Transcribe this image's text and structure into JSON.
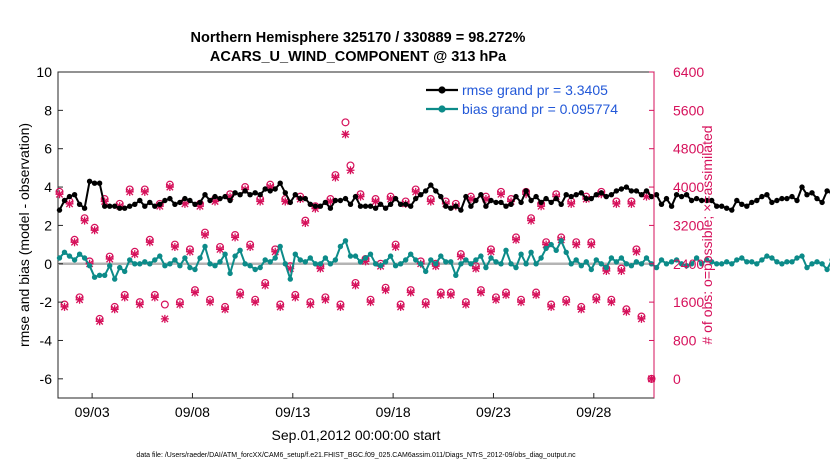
{
  "chart_data": {
    "type": "line",
    "title_line1": "Northern Hemisphere 325170 / 330889 = 98.272%",
    "title_line2": "ACARS_U_WIND_COMPONENT @ 313 hPa",
    "xlabel": "Sep.01,2012 00:00:00 start",
    "ylabel_left": "rmse and bias (model - observation)",
    "ylabel_right": "# of obs: o=possible; ×=assimilated",
    "footer": "data file: /Users/raeder/DAI/ATM_forcXX/CAM6_setup/f.e21.FHIST_BGC.f09_025.CAM6assim.011/Diags_NTrS_2012-09/obs_diag_output.nc",
    "x_tick_labels": [
      "09/03",
      "09/08",
      "09/13",
      "09/18",
      "09/23",
      "09/28"
    ],
    "x_tick_days": [
      3,
      8,
      13,
      18,
      23,
      28
    ],
    "xlim": [
      1.3,
      31.0
    ],
    "ylim_left": [
      -7,
      10
    ],
    "yticks_left": [
      -6,
      -4,
      -2,
      0,
      2,
      4,
      6,
      8,
      10
    ],
    "ylim_right": [
      -400,
      6400
    ],
    "yticks_right": [
      0,
      800,
      1600,
      2400,
      3200,
      4000,
      4800,
      5600,
      6400
    ],
    "legend": [
      {
        "name": "rmse grand pr = 3.3405",
        "color": "#000000"
      },
      {
        "name": "bias grand pr = 0.095774",
        "color": "#0c8b89"
      }
    ],
    "colors": {
      "rmse": "#000000",
      "bias": "#0c8b89",
      "obs": "#d6115b",
      "zero_line": "#b4b4b4",
      "legend_text": "#2258d8"
    },
    "time_step_days": 0.25,
    "start_day": 1.375,
    "rmse": [
      2.8,
      3.3,
      3.5,
      3.6,
      3.1,
      2.9,
      4.3,
      4.2,
      4.2,
      3.0,
      3.0,
      3.0,
      2.9,
      2.9,
      3.0,
      3.1,
      3.3,
      3.0,
      3.2,
      3.0,
      3.1,
      3.3,
      3.4,
      3.1,
      3.2,
      3.4,
      3.3,
      3.1,
      3.2,
      3.6,
      3.3,
      3.5,
      3.4,
      3.5,
      3.3,
      3.7,
      3.6,
      3.8,
      3.6,
      3.7,
      3.6,
      3.9,
      3.8,
      3.9,
      4.2,
      3.7,
      3.2,
      3.6,
      3.4,
      3.4,
      3.1,
      3.0,
      3.0,
      3.2,
      2.9,
      3.3,
      3.3,
      3.4,
      3.1,
      3.5,
      3.0,
      3.0,
      3.0,
      2.9,
      3.1,
      2.9,
      3.1,
      3.4,
      3.1,
      3.1,
      3.0,
      3.4,
      3.6,
      3.8,
      4.1,
      3.8,
      3.5,
      3.0,
      2.9,
      3.0,
      2.8,
      3.5,
      3.0,
      3.3,
      3.6,
      3.0,
      3.3,
      3.2,
      3.2,
      3.0,
      3.1,
      3.5,
      3.2,
      3.8,
      3.3,
      3.5,
      3.2,
      3.4,
      3.2,
      3.4,
      3.1,
      3.6,
      3.5,
      3.6,
      3.7,
      3.4,
      3.4,
      3.6,
      3.7,
      3.5,
      3.6,
      3.8,
      3.9,
      4.0,
      3.8,
      3.8,
      3.6,
      3.8,
      3.5,
      3.6,
      3.1,
      3.4,
      3.0,
      3.6,
      3.5,
      3.6,
      3.3,
      3.4,
      3.3,
      3.3,
      3.3,
      3.0,
      3.0,
      2.9,
      2.8,
      3.3,
      3.1,
      3.0,
      3.2,
      3.3,
      3.5,
      3.6,
      3.2,
      3.3,
      3.4,
      3.4,
      3.5,
      3.3,
      4.0,
      3.6,
      3.7,
      3.4,
      3.2,
      3.8,
      3.7,
      3.4,
      3.6,
      3.2,
      3.2,
      3.6,
      3.3,
      3.5,
      3.0,
      3.0,
      3.4,
      3.6,
      3.5,
      3.7,
      3.4,
      3.6,
      3.3,
      3.8,
      3.5,
      4.4,
      3.9,
      3.6,
      3.3,
      3.5,
      3.0,
      3.4,
      4.4,
      3.9,
      3.5,
      3.4,
      3.2,
      3.3,
      3.3,
      3.5,
      3.6,
      3.6,
      3.8,
      3.4,
      3.1,
      3.2,
      3.4,
      3.6,
      3.9,
      4.0,
      4.2,
      3.8,
      4.1
    ],
    "bias": [
      0.3,
      0.6,
      0.4,
      0.2,
      0.5,
      0.3,
      -0.1,
      -0.7,
      -0.6,
      -0.6,
      -0.1,
      -0.8,
      -0.2,
      -0.4,
      0.2,
      0.0,
      0.0,
      0.1,
      0.0,
      0.2,
      0.4,
      -0.1,
      0.0,
      0.2,
      -0.1,
      0.3,
      -0.2,
      -0.3,
      0.3,
      0.9,
      0.0,
      -0.1,
      0.1,
      0.5,
      -0.5,
      0.4,
      0.7,
      0.0,
      -0.1,
      -0.3,
      -0.2,
      0.2,
      0.1,
      0.3,
      0.9,
      0.0,
      -0.8,
      0.5,
      0.2,
      0.1,
      0.3,
      0.0,
      0.0,
      0.3,
      0.0,
      0.2,
      0.9,
      1.2,
      0.4,
      0.4,
      0.1,
      0.3,
      0.5,
      0.0,
      -0.1,
      0.1,
      0.4,
      -0.1,
      0.0,
      0.2,
      0.5,
      0.2,
      0.0,
      -0.4,
      0.2,
      0.0,
      0.4,
      0.1,
      0.1,
      -0.6,
      0.0,
      0.2,
      0.0,
      0.2,
      0.4,
      -0.2,
      0.3,
      0.1,
      0.0,
      0.7,
      0.0,
      -0.2,
      0.5,
      0.0,
      0.6,
      0.0,
      0.3,
      0.8,
      1.0,
      0.7,
      1.2,
      0.6,
      0.0,
      0.2,
      -0.1,
      0.1,
      -0.3,
      0.2,
      0.0,
      -0.2,
      0.3,
      0.1,
      0.3,
      0.0,
      -0.1,
      0.1,
      0.0,
      0.3,
      0.0,
      -0.2,
      0.2,
      0.0,
      0.1,
      0.2,
      0.0,
      -0.1,
      0.0,
      0.3,
      0.0,
      0.2,
      0.1,
      0.0,
      0.0,
      0.1,
      0.0,
      0.2,
      0.3,
      0.1,
      0.1,
      0.0,
      0.2,
      0.4,
      0.3,
      0.1,
      0.0,
      0.1,
      0.1,
      0.3,
      0.4,
      -0.2,
      0.0,
      0.1,
      0.0,
      -0.3,
      0.2,
      0.0,
      0.1,
      0.1,
      0.0,
      -0.2,
      0.1,
      -0.1,
      -0.3,
      0.1,
      0.0,
      0.1,
      0.0,
      0.3,
      0.0,
      0.3,
      0.1,
      0.4,
      0.2,
      0.4,
      0.5,
      0.4,
      0.2,
      0.2,
      0.3,
      0.4,
      0.4,
      0.9,
      0.7,
      0.4,
      0.3,
      0.0,
      0.2,
      -0.2,
      0.1,
      -0.3,
      -0.4,
      0.2,
      0.0,
      0.0,
      -0.3,
      -0.1,
      -0.3,
      -0.1,
      -0.2,
      -0.2,
      0.0,
      0.0
    ],
    "obs_time_days": [
      1.375,
      1.625,
      1.875,
      2.125,
      2.375,
      2.625,
      2.875,
      3.125,
      3.375,
      3.625,
      3.875,
      4.125,
      4.375,
      4.625,
      4.875,
      5.125,
      5.375,
      5.625,
      5.875,
      6.125,
      6.375,
      6.625,
      6.875,
      7.125,
      7.375,
      7.625,
      7.875,
      8.125,
      8.375,
      8.625,
      8.875,
      9.125,
      9.375,
      9.625,
      9.875,
      10.125,
      10.375,
      10.625,
      10.875,
      11.125,
      11.375,
      11.625,
      11.875,
      12.125,
      12.375,
      12.625,
      12.875,
      13.125,
      13.375,
      13.625,
      13.875,
      14.125,
      14.375,
      14.625,
      14.875,
      15.125,
      15.375,
      15.625,
      15.875,
      16.125,
      16.375,
      16.625,
      16.875,
      17.125,
      17.375,
      17.625,
      17.875,
      18.125,
      18.375,
      18.625,
      18.875,
      19.125,
      19.375,
      19.625,
      19.875,
      20.125,
      20.375,
      20.625,
      20.875,
      21.125,
      21.375,
      21.625,
      21.875,
      22.125,
      22.375,
      22.625,
      22.875,
      23.125,
      23.375,
      23.625,
      23.875,
      24.125,
      24.375,
      24.625,
      24.875,
      25.125,
      25.375,
      25.625,
      25.875,
      26.125,
      26.375,
      26.625,
      26.875,
      27.125,
      27.375,
      27.625,
      27.875,
      28.125,
      28.375,
      28.625,
      28.875,
      29.125,
      29.375,
      29.625,
      29.875,
      30.125,
      30.375,
      30.625,
      30.875
    ],
    "obs_assimilated": [
      3850,
      1500,
      3650,
      2850,
      1650,
      3300,
      2400,
      3100,
      1200,
      3700,
      2500,
      1450,
      3600,
      1700,
      3900,
      2600,
      1550,
      3900,
      2850,
      1700,
      3600,
      1250,
      4000,
      2750,
      1550,
      3650,
      2650,
      1800,
      3600,
      3000,
      1600,
      3700,
      2700,
      1450,
      3800,
      2950,
      1750,
      3950,
      2750,
      1600,
      3700,
      1950,
      4000,
      2650,
      1500,
      3700,
      2300,
      1700,
      3750,
      3250,
      1550,
      3550,
      2300,
      1650,
      3700,
      4200,
      1500,
      5100,
      4350,
      1950,
      3800,
      2450,
      1600,
      3700,
      2350,
      1850,
      3750,
      2750,
      1500,
      3650,
      1800,
      3900,
      2400,
      1550,
      3700,
      2350,
      1750,
      3650,
      1750,
      3600,
      2550,
      1550,
      3750,
      2300,
      1800,
      3750,
      2650,
      1650,
      3850,
      1750,
      3700,
      2900,
      1600,
      3850,
      3300,
      1750,
      3600,
      2800,
      1500,
      3800,
      2900,
      1600,
      3650,
      2800,
      1450,
      3750,
      2800,
      1650,
      3850,
      2250,
      1600,
      3650,
      2250,
      1400,
      3650,
      2650,
      1250,
      3800,
      0
    ],
    "obs_possible": [
      3900,
      1550,
      3700,
      2900,
      1700,
      3350,
      2450,
      3150,
      1250,
      3750,
      2550,
      1500,
      3650,
      1750,
      3950,
      2650,
      1600,
      3950,
      2900,
      1750,
      3650,
      1550,
      4050,
      2800,
      1600,
      3700,
      2700,
      1850,
      3650,
      3050,
      1650,
      3750,
      2750,
      1500,
      3850,
      3000,
      1800,
      4000,
      2800,
      1650,
      3750,
      2000,
      4050,
      2700,
      1550,
      3750,
      2350,
      1750,
      3800,
      3300,
      1600,
      3600,
      2350,
      1700,
      3750,
      4250,
      1550,
      5350,
      4450,
      2000,
      3850,
      2500,
      1650,
      3750,
      2400,
      1900,
      3800,
      2800,
      1550,
      3700,
      1850,
      3950,
      2450,
      1600,
      3750,
      2400,
      1800,
      3700,
      1800,
      3650,
      2600,
      1600,
      3800,
      2350,
      1850,
      3800,
      2700,
      1700,
      3900,
      1800,
      3750,
      2950,
      1650,
      3900,
      3350,
      1800,
      3650,
      2850,
      1550,
      3850,
      2950,
      1650,
      3700,
      2850,
      1500,
      3800,
      2850,
      1700,
      3900,
      2300,
      1650,
      3700,
      2300,
      1450,
      3700,
      2700,
      1300,
      3850,
      0
    ]
  }
}
